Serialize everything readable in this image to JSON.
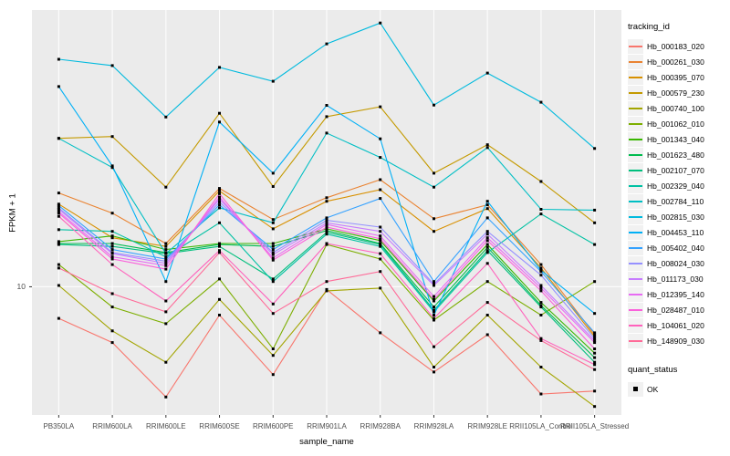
{
  "axes": {
    "y_label": "FPKM + 1",
    "x_label": "sample_name",
    "y_tick_label": "10"
  },
  "legend": {
    "color_title": "tracking_id",
    "shape_title": "quant_status",
    "shape_items": [
      {
        "label": "OK",
        "color": "#000000"
      }
    ]
  },
  "chart_data": {
    "type": "line",
    "title": "",
    "xlabel": "sample_name",
    "ylabel": "FPKM + 1",
    "y_scale": "log10",
    "ylim": [
      3.85,
      78.5
    ],
    "y_ticks": [
      10
    ],
    "grid": true,
    "legend_position": "right",
    "panel_bg": "#ebebeb",
    "grid_color": "#ffffff",
    "point_color": "#000000",
    "categories": [
      "PB350LA",
      "RRIM600LA",
      "RRIM600LE",
      "RRIM600SE",
      "RRIM600PE",
      "RRIM901LA",
      "RRIM928BA",
      "RRIM928LA",
      "RRIM928LE",
      "RRII105LA_Control",
      "RRII105LA_Stressed"
    ],
    "series": [
      {
        "name": "Hb_000183_020",
        "color": "#F8766D",
        "values": [
          7.9,
          6.6,
          4.4,
          8.1,
          5.2,
          9.8,
          7.1,
          5.3,
          7.0,
          4.5,
          4.6
        ]
      },
      {
        "name": "Hb_000261_030",
        "color": "#EA8331",
        "values": [
          20.1,
          17.3,
          13.8,
          20.8,
          16.5,
          19.4,
          22.2,
          16.6,
          18.4,
          11.8,
          7.0
        ]
      },
      {
        "name": "Hb_000395_070",
        "color": "#D89000",
        "values": [
          18.5,
          14.4,
          13.5,
          20.4,
          15.4,
          18.9,
          20.6,
          15.1,
          17.9,
          11.5,
          6.9
        ]
      },
      {
        "name": "Hb_000579_230",
        "color": "#C49A00",
        "values": [
          30.2,
          30.6,
          21.0,
          36.4,
          21.1,
          35.5,
          38.2,
          23.3,
          28.8,
          21.9,
          16.1
        ]
      },
      {
        "name": "Hb_000740_100",
        "color": "#A3A500",
        "values": [
          10.1,
          7.2,
          5.7,
          9.1,
          6.0,
          9.7,
          9.9,
          5.5,
          8.1,
          5.5,
          4.1
        ]
      },
      {
        "name": "Hb_001062_010",
        "color": "#7CAE00",
        "values": [
          11.8,
          8.6,
          7.6,
          10.6,
          6.3,
          13.7,
          12.3,
          7.8,
          10.4,
          8.1,
          10.4
        ]
      },
      {
        "name": "Hb_001343_040",
        "color": "#39B600",
        "values": [
          14.0,
          14.6,
          13.2,
          13.8,
          13.8,
          15.4,
          14.1,
          9.0,
          13.7,
          8.9,
          6.1
        ]
      },
      {
        "name": "Hb_001623_480",
        "color": "#00BB4E",
        "values": [
          13.8,
          13.8,
          12.9,
          13.7,
          13.5,
          15.2,
          13.8,
          8.6,
          13.4,
          8.7,
          5.9
        ]
      },
      {
        "name": "Hb_002107_070",
        "color": "#00BF7D",
        "values": [
          13.7,
          13.5,
          12.8,
          13.5,
          10.6,
          15.0,
          13.7,
          8.4,
          13.1,
          8.6,
          5.7
        ]
      },
      {
        "name": "Hb_002329_040",
        "color": "#00C1A3",
        "values": [
          15.3,
          15.1,
          12.5,
          16.1,
          10.4,
          14.8,
          13.5,
          8.3,
          12.9,
          17.2,
          13.7
        ]
      },
      {
        "name": "Hb_002784_110",
        "color": "#00BFC4",
        "values": [
          30.2,
          24.3,
          12.8,
          18.0,
          16.1,
          31.4,
          26.2,
          21.0,
          28.2,
          17.8,
          17.7
        ]
      },
      {
        "name": "Hb_002815_030",
        "color": "#00BADE",
        "values": [
          54.4,
          51.9,
          35.4,
          51.2,
          46.2,
          61.0,
          71.3,
          38.7,
          49.1,
          39.5,
          28.0
        ]
      },
      {
        "name": "Hb_004453_110",
        "color": "#00B0F6",
        "values": [
          44.4,
          24.6,
          10.4,
          34.1,
          23.3,
          38.6,
          30.1,
          8.1,
          18.9,
          11.3,
          8.2
        ]
      },
      {
        "name": "Hb_005402_040",
        "color": "#35A2FF",
        "values": [
          18.3,
          13.2,
          12.3,
          18.4,
          13.2,
          16.7,
          19.3,
          10.4,
          16.7,
          11.2,
          7.1
        ]
      },
      {
        "name": "Hb_008024_030",
        "color": "#9590FF",
        "values": [
          18.0,
          12.9,
          12.1,
          18.8,
          12.9,
          16.4,
          15.6,
          10.2,
          15.1,
          10.9,
          6.8
        ]
      },
      {
        "name": "Hb_011173_030",
        "color": "#C77CFF",
        "values": [
          17.8,
          12.8,
          11.9,
          19.2,
          12.7,
          16.1,
          15.1,
          10.1,
          14.8,
          10.1,
          6.7
        ]
      },
      {
        "name": "Hb_012395_140",
        "color": "#E76BF3",
        "values": [
          17.5,
          12.5,
          11.7,
          19.5,
          12.4,
          15.9,
          14.6,
          9.3,
          14.4,
          9.9,
          6.6
        ]
      },
      {
        "name": "Hb_028487_010",
        "color": "#FA62DB",
        "values": [
          17.3,
          12.3,
          11.4,
          20.0,
          12.2,
          15.6,
          14.3,
          9.1,
          14.1,
          9.7,
          6.3
        ]
      },
      {
        "name": "Hb_104061_020",
        "color": "#FF62BC",
        "values": [
          16.9,
          11.8,
          9.0,
          13.1,
          8.8,
          13.8,
          12.8,
          7.9,
          11.9,
          6.8,
          5.6
        ]
      },
      {
        "name": "Hb_148909_030",
        "color": "#FF6A98",
        "values": [
          11.5,
          9.5,
          8.3,
          12.9,
          8.2,
          10.4,
          11.2,
          6.4,
          8.9,
          6.7,
          5.4
        ]
      }
    ]
  }
}
